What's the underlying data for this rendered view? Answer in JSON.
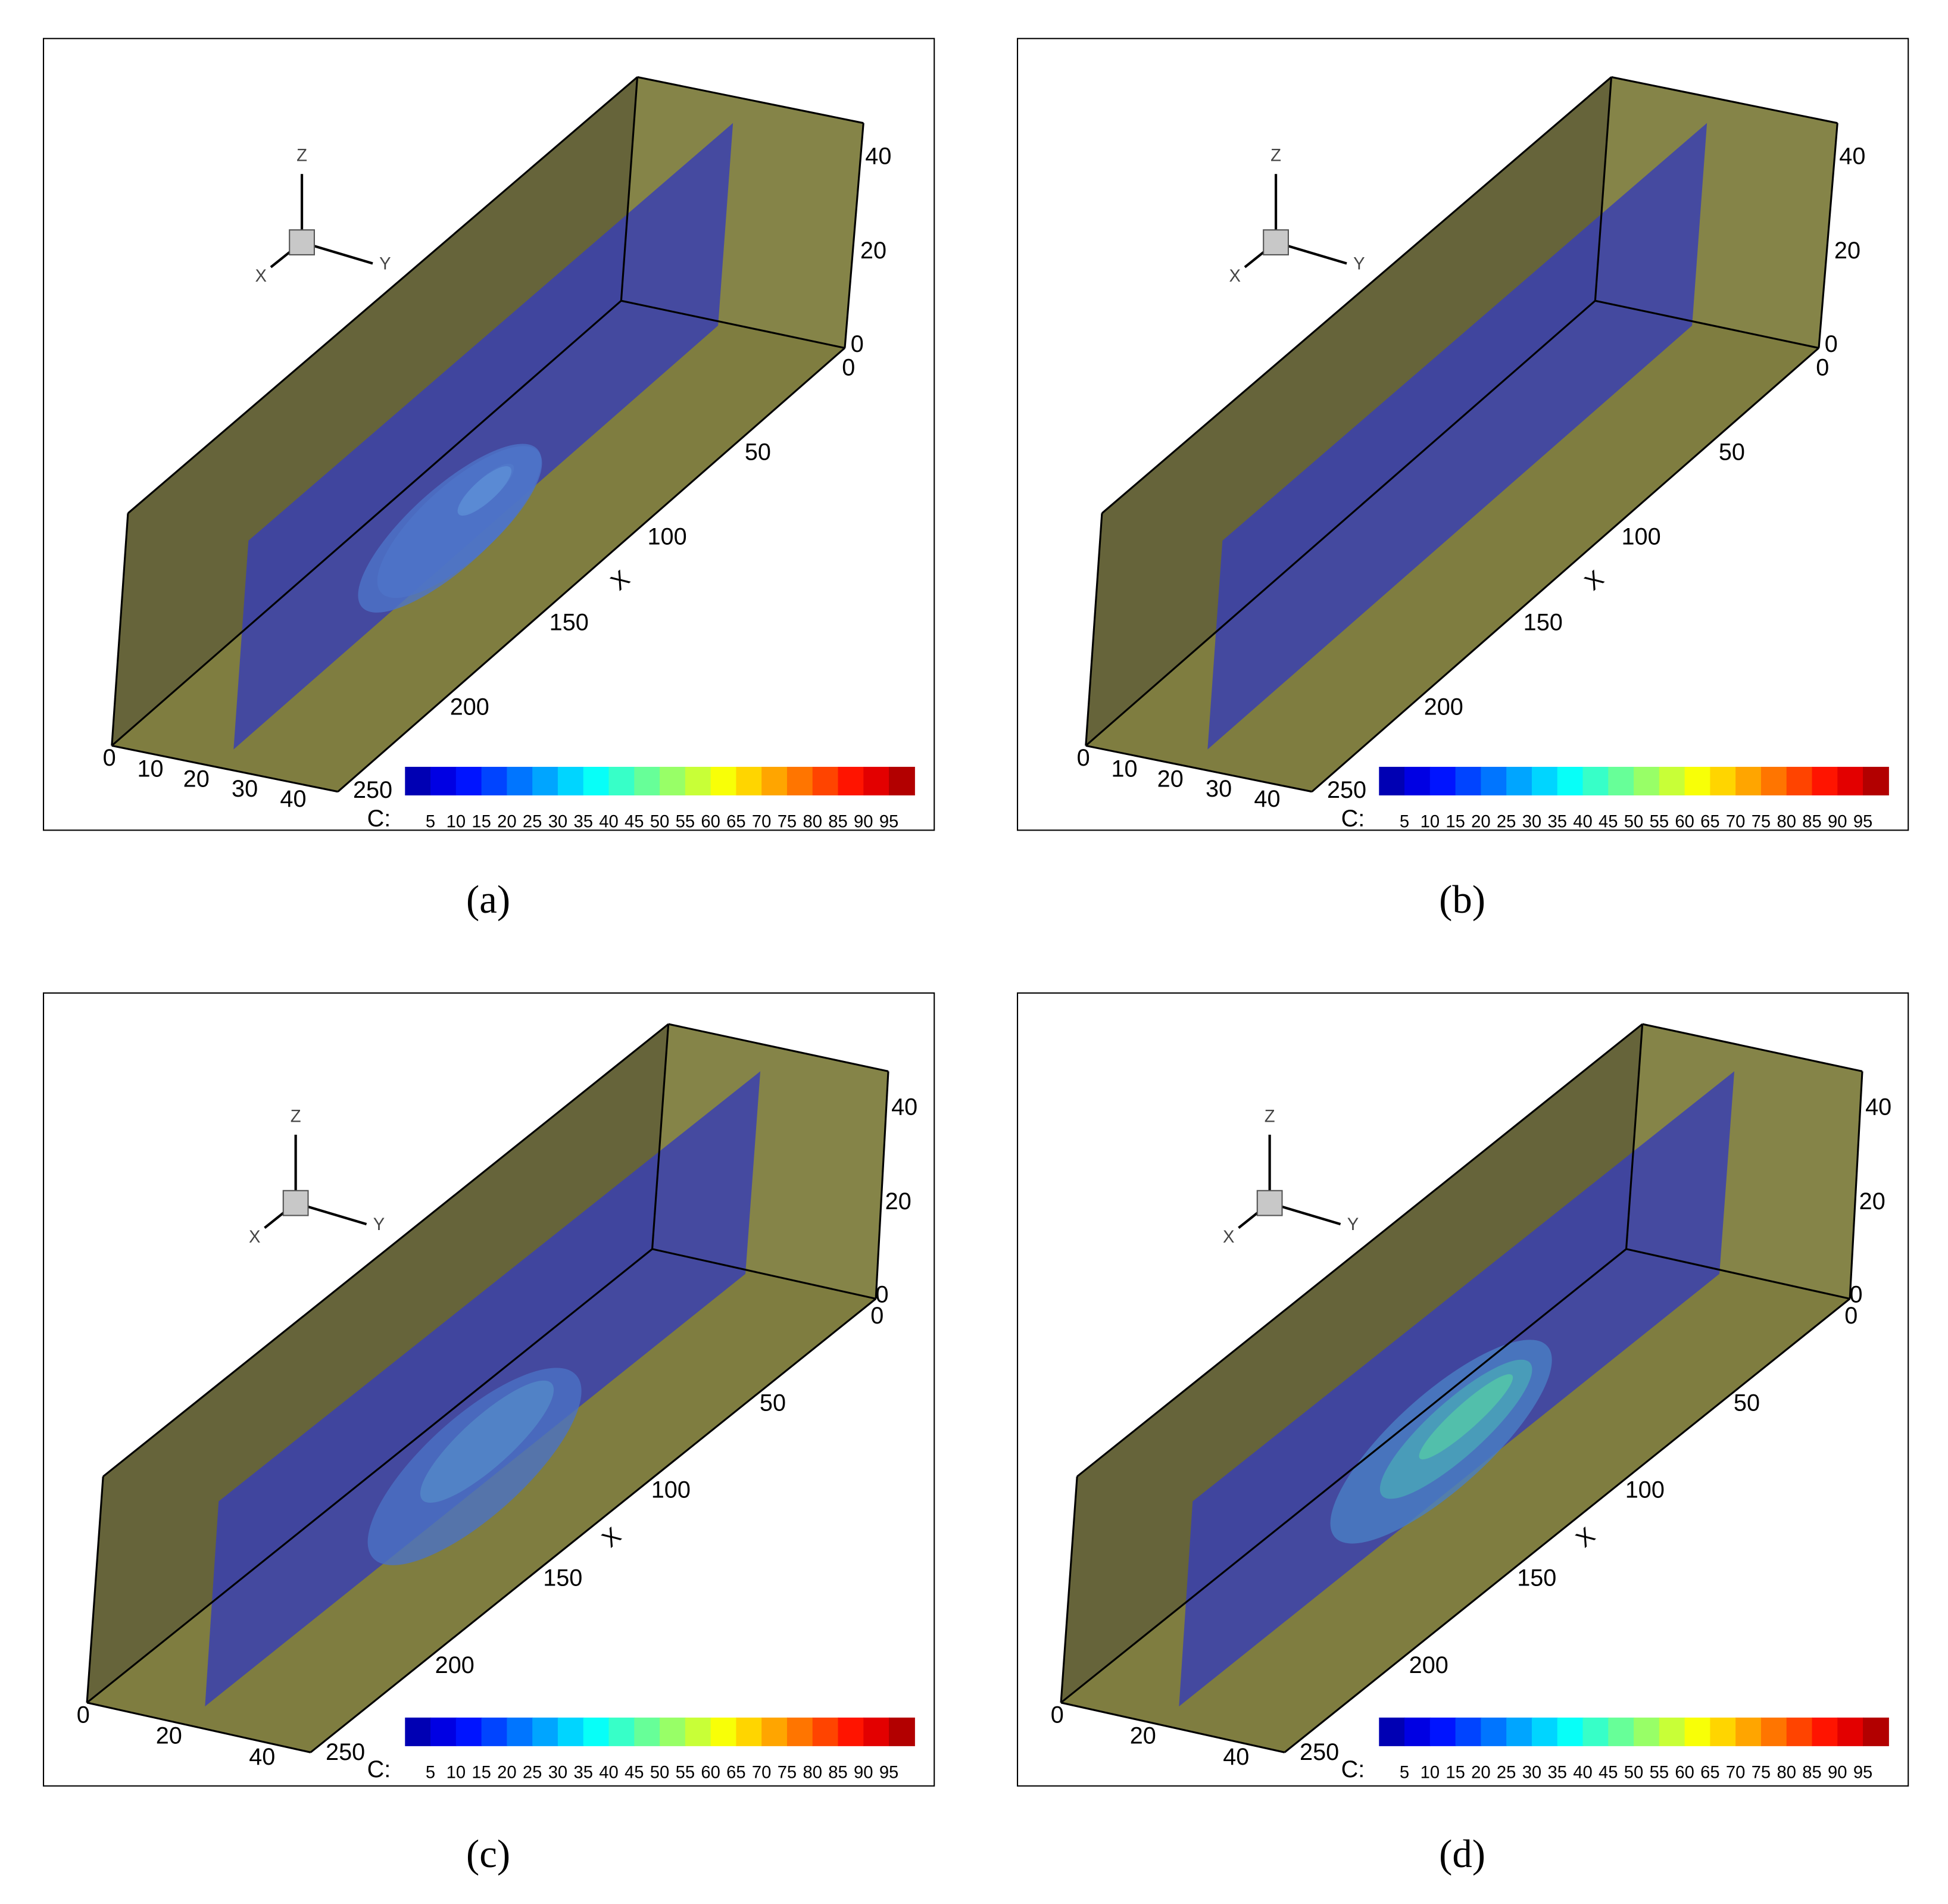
{
  "panels": [
    {
      "label": "(a)",
      "triad": {
        "x": "X",
        "y": "Y",
        "z": "Z"
      },
      "x_axis": {
        "title": "X",
        "ticks": [
          0,
          50,
          100,
          150,
          200,
          250
        ]
      },
      "y_axis": {
        "ticks": [
          0,
          10,
          20,
          30,
          40
        ]
      },
      "z_axis": {
        "ticks": [
          0,
          20,
          40
        ]
      },
      "colorbar": {
        "label": "C:",
        "levels": [
          5,
          10,
          15,
          20,
          25,
          30,
          35,
          40,
          45,
          50,
          55,
          60,
          65,
          70,
          75,
          80,
          85,
          90,
          95
        ]
      }
    },
    {
      "label": "(b)",
      "triad": {
        "x": "X",
        "y": "Y",
        "z": "Z"
      },
      "x_axis": {
        "title": "X",
        "ticks": [
          0,
          50,
          100,
          150,
          200,
          250
        ]
      },
      "y_axis": {
        "ticks": [
          0,
          10,
          20,
          30,
          40
        ]
      },
      "z_axis": {
        "ticks": [
          0,
          20,
          40
        ]
      },
      "colorbar": {
        "label": "C:",
        "levels": [
          5,
          10,
          15,
          20,
          25,
          30,
          35,
          40,
          45,
          50,
          55,
          60,
          65,
          70,
          75,
          80,
          85,
          90,
          95
        ]
      }
    },
    {
      "label": "(c)",
      "triad": {
        "x": "X",
        "y": "Y",
        "z": "Z"
      },
      "x_axis": {
        "title": "X",
        "ticks": [
          0,
          50,
          100,
          150,
          200,
          250
        ]
      },
      "y_axis": {
        "ticks": [
          0,
          20,
          40
        ]
      },
      "z_axis": {
        "ticks": [
          0,
          20,
          40
        ]
      },
      "colorbar": {
        "label": "C:",
        "levels": [
          5,
          10,
          15,
          20,
          25,
          30,
          35,
          40,
          45,
          50,
          55,
          60,
          65,
          70,
          75,
          80,
          85,
          90,
          95
        ]
      }
    },
    {
      "label": "(d)",
      "triad": {
        "x": "X",
        "y": "Y",
        "z": "Z"
      },
      "x_axis": {
        "title": "X",
        "ticks": [
          0,
          50,
          100,
          150,
          200,
          250
        ]
      },
      "y_axis": {
        "ticks": [
          0,
          20,
          40
        ]
      },
      "z_axis": {
        "ticks": [
          0,
          20,
          40
        ]
      },
      "colorbar": {
        "label": "C:",
        "levels": [
          5,
          10,
          15,
          20,
          25,
          30,
          35,
          40,
          45,
          50,
          55,
          60,
          65,
          70,
          75,
          80,
          85,
          90,
          95
        ]
      }
    }
  ]
}
